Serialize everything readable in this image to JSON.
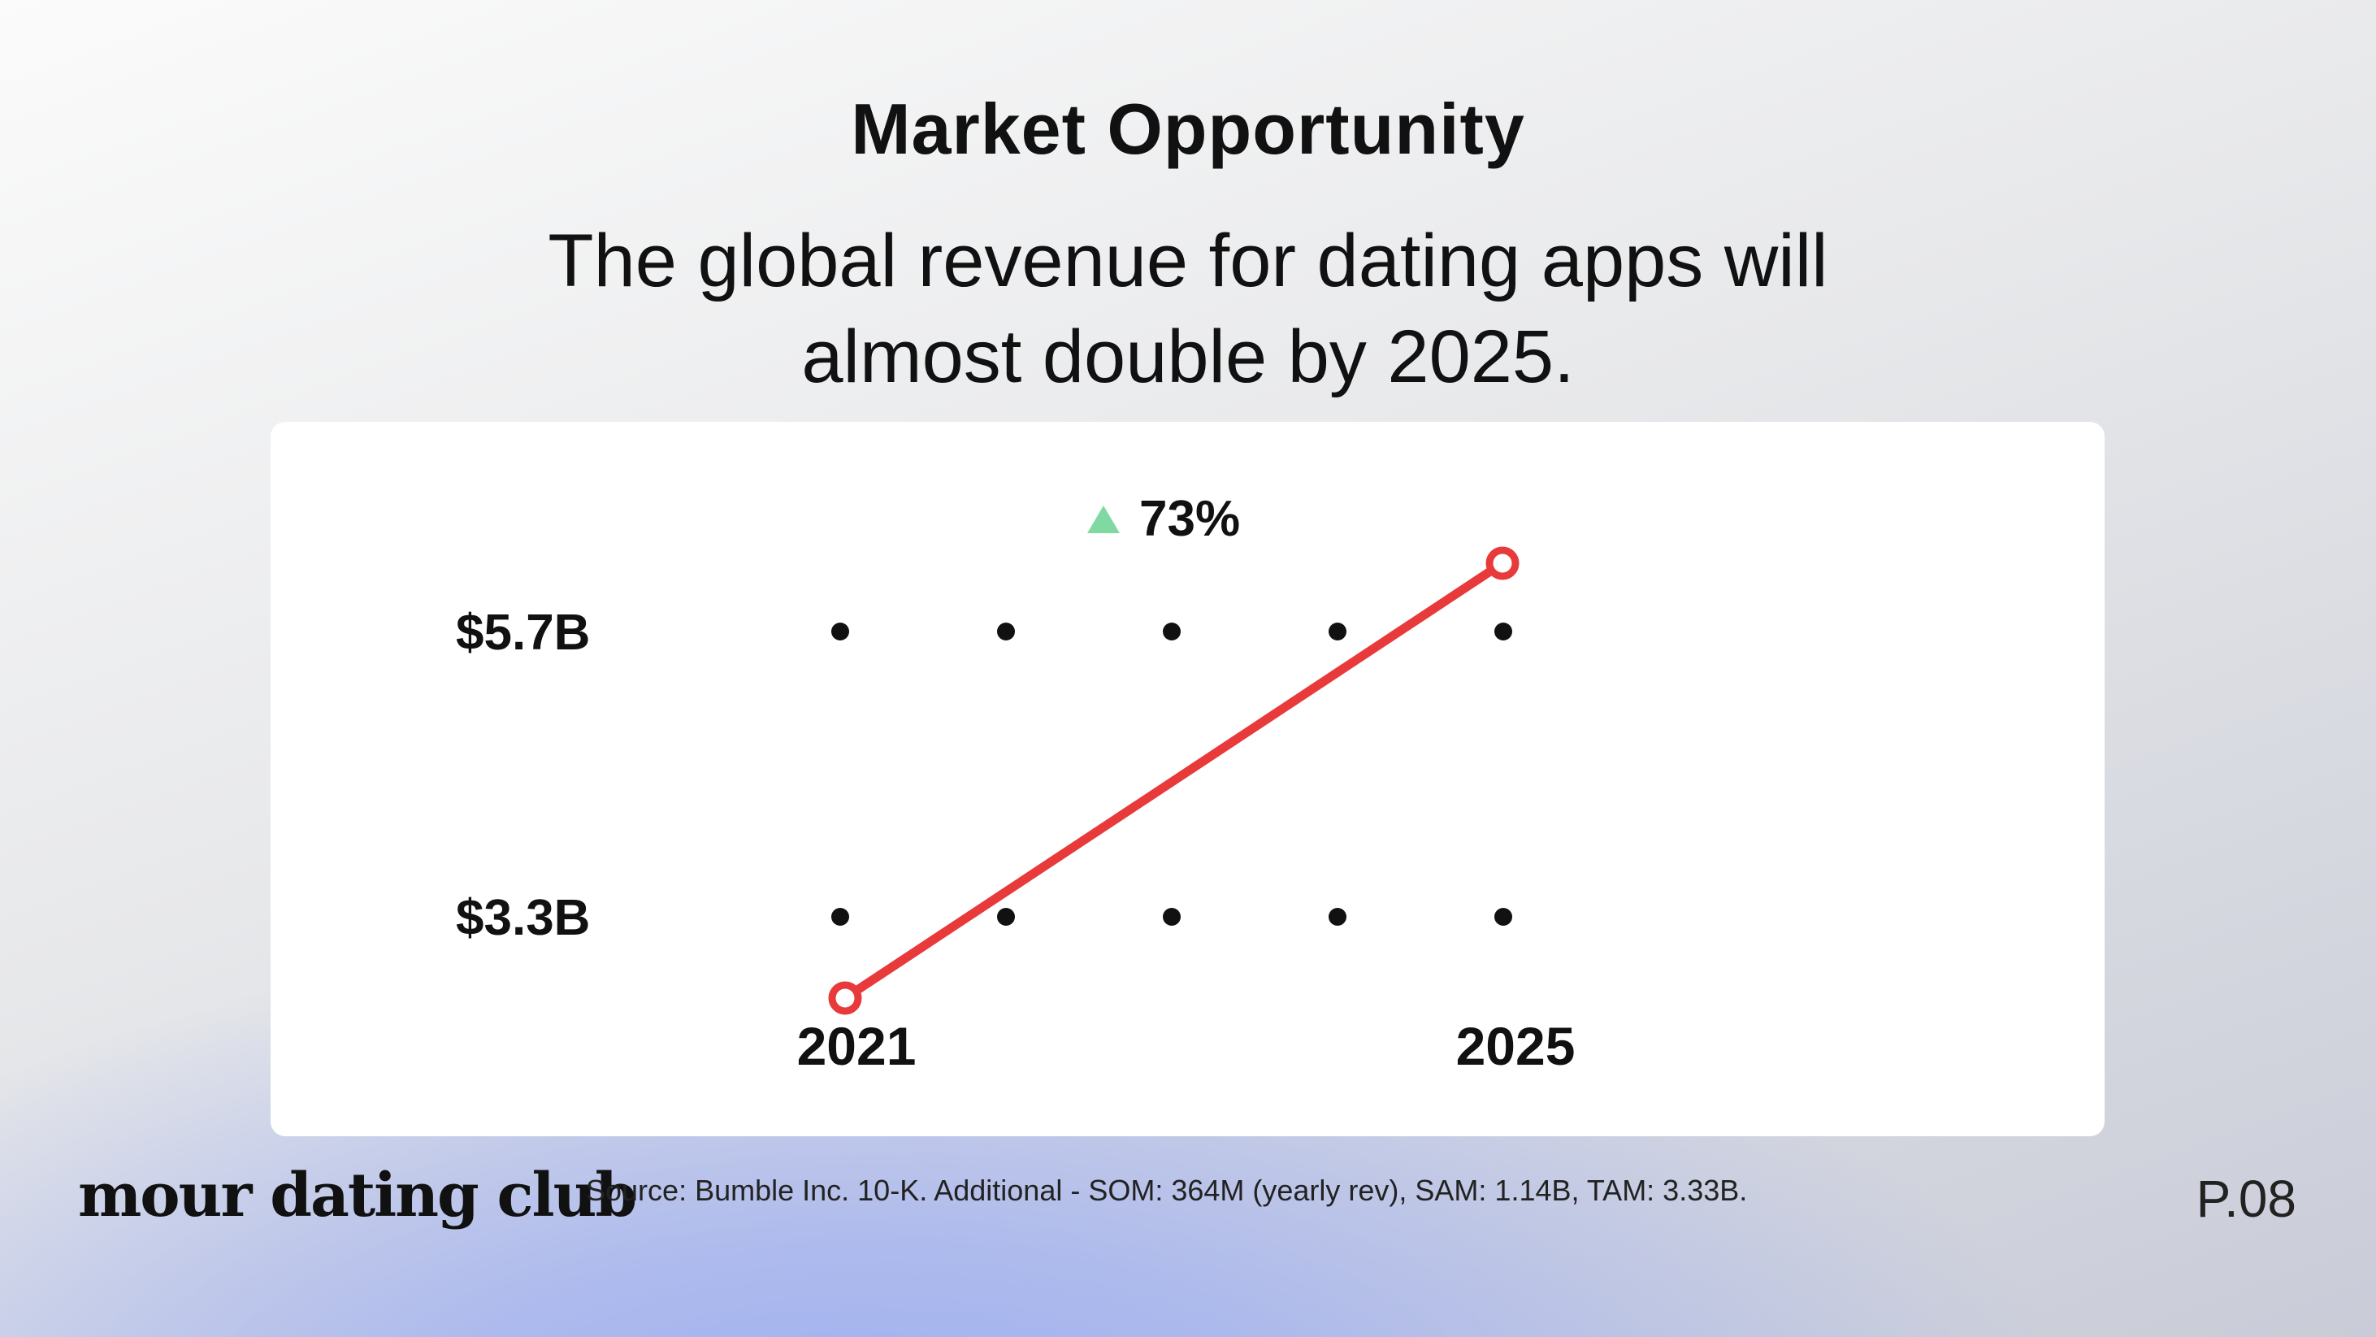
{
  "title": "Market Opportunity",
  "subtitle": "The global revenue for dating apps will almost double by 2025.",
  "chart_data": {
    "type": "line",
    "x": [
      2021,
      2025
    ],
    "x_tick_labels": [
      "2021",
      "2025"
    ],
    "series": [
      {
        "values": [
          3.3,
          5.7
        ],
        "color": "#e83a3a"
      }
    ],
    "y_tick_labels": [
      "$5.7B",
      "$3.3B"
    ],
    "y_tick_values": [
      5.7,
      3.3
    ],
    "grid_dot_columns": 5,
    "change_label": "73%",
    "change_direction": "up",
    "change_icon": "triangle-up-icon",
    "change_color": "#7fd9a1"
  },
  "footer": {
    "brand": "mour dating club",
    "source": "Source: Bumble Inc. 10-K. Additional - SOM: 364M (yearly rev), SAM: 1.14B, TAM: 3.33B.",
    "page": "P.08"
  },
  "colors": {
    "card": "#ffffff",
    "line": "#e83a3a",
    "accent_up": "#7fd9a1",
    "text": "#111111"
  }
}
